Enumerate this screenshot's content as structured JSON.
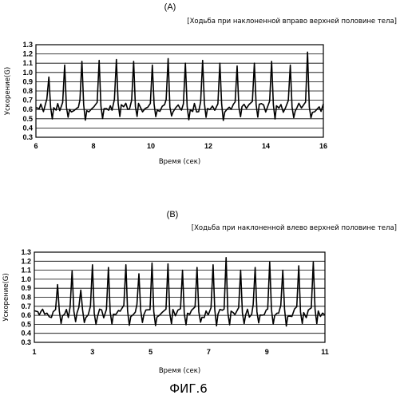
{
  "figure_caption": "ФИГ.6",
  "chart_data": [
    {
      "type": "line",
      "panel_label": "(A)",
      "title": "[Ходьба при наклоненной вправо верхней половине тела]",
      "xlabel": "Время (сек)",
      "ylabel": "Ускорение(G)",
      "xlim": [
        6,
        16
      ],
      "ylim": [
        0.3,
        1.3
      ],
      "x_ticks": [
        "6",
        "8",
        "10",
        "12",
        "14",
        "16"
      ],
      "y_ticks": [
        "0.3",
        "0.4",
        "0.5",
        "0.6",
        "0.7",
        "0.8",
        "0.9",
        "1.0",
        "1.1",
        "1.2",
        "1.3"
      ],
      "grid": true,
      "series": [
        {
          "start_value": 0.62,
          "end_value": 0.66,
          "peaks": [
            {
              "t": 6.45,
              "v": 0.95
            },
            {
              "t": 7.0,
              "v": 1.08
            },
            {
              "t": 7.6,
              "v": 1.12
            },
            {
              "t": 8.2,
              "v": 1.13
            },
            {
              "t": 8.8,
              "v": 1.14
            },
            {
              "t": 9.4,
              "v": 1.12
            },
            {
              "t": 10.05,
              "v": 1.08
            },
            {
              "t": 10.6,
              "v": 1.15
            },
            {
              "t": 11.2,
              "v": 1.1
            },
            {
              "t": 11.8,
              "v": 1.13
            },
            {
              "t": 12.4,
              "v": 1.1
            },
            {
              "t": 13.0,
              "v": 1.07
            },
            {
              "t": 13.6,
              "v": 1.1
            },
            {
              "t": 14.2,
              "v": 1.12
            },
            {
              "t": 14.85,
              "v": 1.08
            },
            {
              "t": 15.45,
              "v": 1.22
            }
          ]
        }
      ]
    },
    {
      "type": "line",
      "panel_label": "(B)",
      "title": "[Ходьба при наклоненной влево верхней половине тела]",
      "xlabel": "Время (сек)",
      "ylabel": "Ускорение(G)",
      "xlim": [
        1,
        11
      ],
      "ylim": [
        0.3,
        1.3
      ],
      "x_ticks": [
        "1",
        "3",
        "5",
        "7",
        "9",
        "11"
      ],
      "y_ticks": [
        "0.3",
        "0.4",
        "0.5",
        "0.6",
        "0.7",
        "0.8",
        "0.9",
        "1.0",
        "1.1",
        "1.2",
        "1.3"
      ],
      "grid": true,
      "series": [
        {
          "start_value": 0.65,
          "end_value": 0.6,
          "peaks": [
            {
              "t": 1.8,
              "v": 0.94
            },
            {
              "t": 2.3,
              "v": 1.09
            },
            {
              "t": 2.6,
              "v": 0.88
            },
            {
              "t": 3.0,
              "v": 1.16
            },
            {
              "t": 3.55,
              "v": 1.13
            },
            {
              "t": 4.15,
              "v": 1.16
            },
            {
              "t": 4.6,
              "v": 1.06
            },
            {
              "t": 5.05,
              "v": 1.18
            },
            {
              "t": 5.6,
              "v": 1.17
            },
            {
              "t": 6.1,
              "v": 1.1
            },
            {
              "t": 6.6,
              "v": 1.13
            },
            {
              "t": 7.15,
              "v": 1.16
            },
            {
              "t": 7.6,
              "v": 1.24
            },
            {
              "t": 8.1,
              "v": 1.1
            },
            {
              "t": 8.6,
              "v": 1.13
            },
            {
              "t": 9.1,
              "v": 1.19
            },
            {
              "t": 9.55,
              "v": 1.1
            },
            {
              "t": 10.1,
              "v": 1.15
            },
            {
              "t": 10.6,
              "v": 1.19
            }
          ]
        }
      ]
    }
  ]
}
